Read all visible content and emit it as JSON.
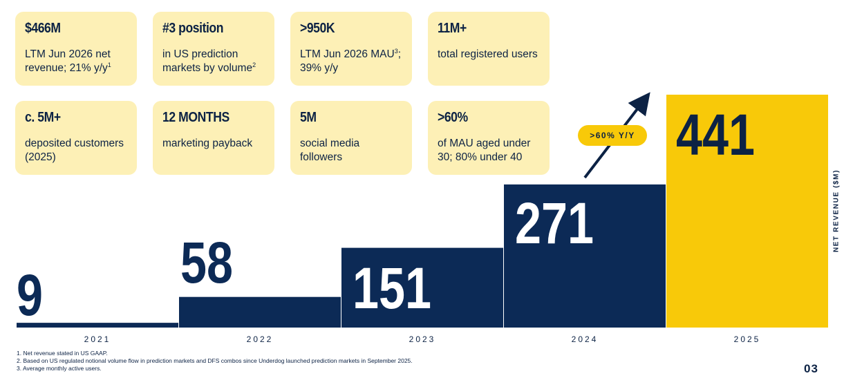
{
  "cards": [
    {
      "value": "$466M",
      "desc": "LTM Jun 2026 net revenue; 21% y/y",
      "sup": "1"
    },
    {
      "value": "#3 position",
      "desc": "in US prediction markets by volume",
      "sup": "2"
    },
    {
      "value": ">950K",
      "desc_a": "LTM Jun 2026 MAU",
      "sup": "3",
      "desc_b": "; 39% y/y"
    },
    {
      "value": "11M+",
      "desc": "total registered users"
    },
    {
      "value": "c. 5M+",
      "desc": "deposited customers (2025)"
    },
    {
      "value": "12 MONTHS",
      "desc": "marketing payback"
    },
    {
      "value": "5M",
      "desc": "social media followers"
    },
    {
      "value": ">60%",
      "desc": "of MAU aged under 30; 80% under 40"
    }
  ],
  "chart_data": {
    "type": "bar",
    "categories": [
      "2021",
      "2022",
      "2023",
      "2024",
      "2025"
    ],
    "values": [
      9,
      58,
      151,
      271,
      441
    ],
    "ylabel": "NET REVENUE ($M)",
    "annotation": ">60% Y/Y",
    "colors": {
      "default": "#0c2a56",
      "highlight": "#f8c909"
    }
  },
  "footnotes": [
    "1.  Net revenue stated in US GAAP.",
    "2.  Based on US regulated notional volume flow in prediction markets and DFS combos since Underdog launched prediction markets in September 2025.",
    "3.  Average monthly active users."
  ],
  "page_number": "03"
}
